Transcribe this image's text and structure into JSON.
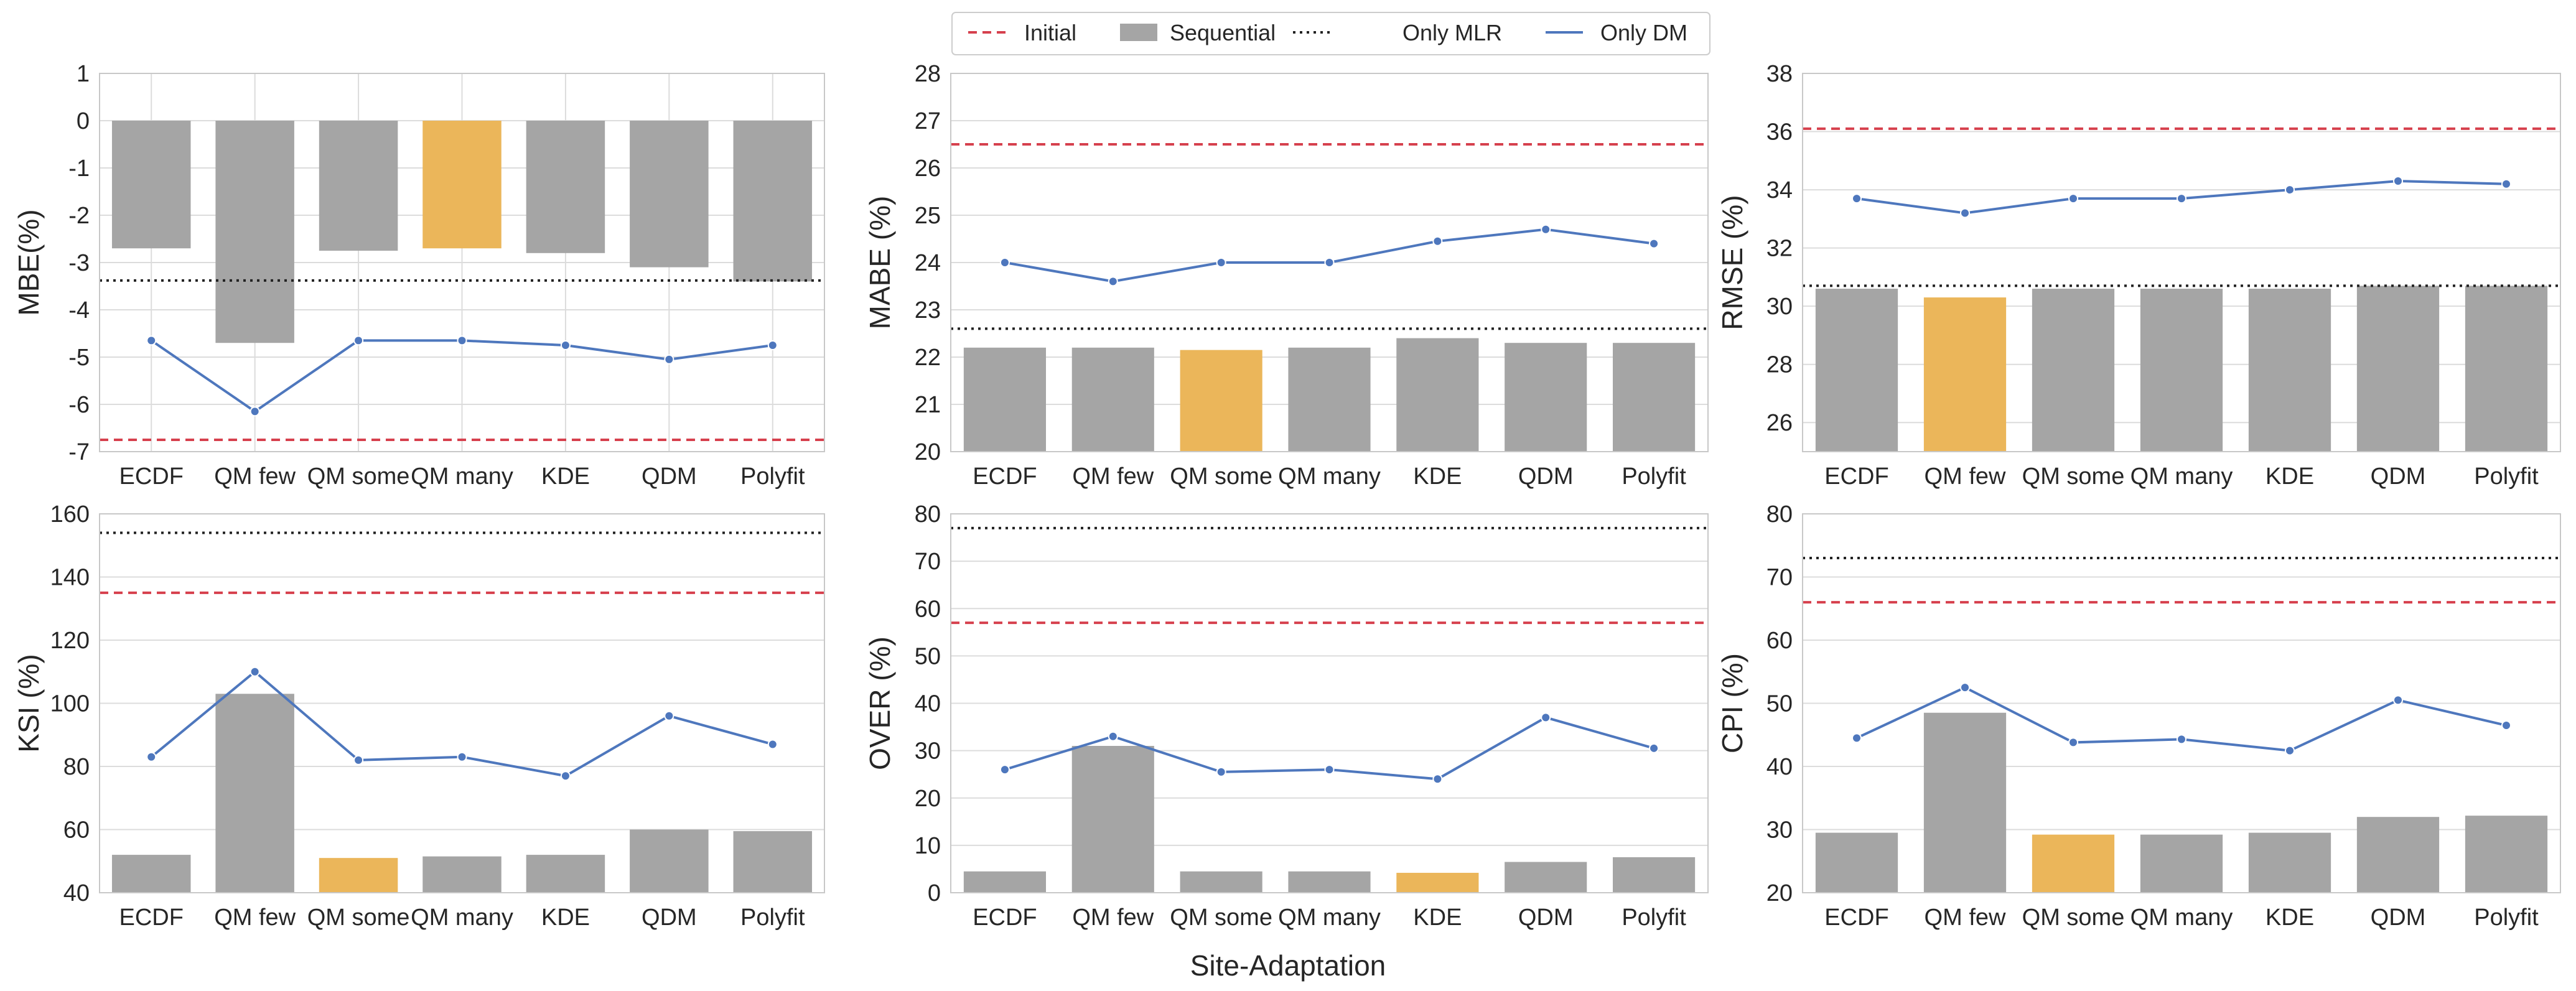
{
  "colors": {
    "bar": "#a5a5a5",
    "highlight": "#ebb65a",
    "initial": "#d6404d",
    "only_mlr": "#222222",
    "only_dm": "#4e77bd",
    "grid": "#dcdcdc",
    "frame": "#c8c8c8"
  },
  "legend": {
    "initial": "Initial",
    "sequential": "Sequential",
    "only_mlr": "Only MLR",
    "only_dm": "Only DM"
  },
  "xlabel": "Site-Adaptation",
  "chart_data": [
    {
      "type": "bar",
      "ylabel": "MBE(%)",
      "categories": [
        "ECDF",
        "QM few",
        "QM some",
        "QM many",
        "KDE",
        "QDM",
        "Polyfit"
      ],
      "ylim": [
        -7,
        1
      ],
      "yticks": [
        1,
        0,
        -1,
        -2,
        -3,
        -4,
        -5,
        -6,
        -7
      ],
      "xgrid": true,
      "series": [
        {
          "name": "Sequential",
          "kind": "bar",
          "values": [
            -2.7,
            -4.7,
            -2.75,
            -2.7,
            -2.8,
            -3.1,
            -3.4
          ],
          "highlight_index": 3
        },
        {
          "name": "Only DM",
          "kind": "line",
          "values": [
            -4.65,
            -6.15,
            -4.65,
            -4.65,
            -4.75,
            -5.05,
            -4.75
          ]
        },
        {
          "name": "Initial",
          "kind": "hline",
          "value": -6.75
        },
        {
          "name": "Only MLR",
          "kind": "hline",
          "value": -3.38
        }
      ]
    },
    {
      "type": "bar",
      "ylabel": "MABE (%)",
      "categories": [
        "ECDF",
        "QM few",
        "QM some",
        "QM many",
        "KDE",
        "QDM",
        "Polyfit"
      ],
      "ylim": [
        20,
        28
      ],
      "yticks": [
        28,
        27,
        26,
        25,
        24,
        23,
        22,
        21,
        20
      ],
      "xgrid": false,
      "series": [
        {
          "name": "Sequential",
          "kind": "bar",
          "values": [
            22.2,
            22.2,
            22.15,
            22.2,
            22.4,
            22.3,
            22.3
          ],
          "highlight_index": 2
        },
        {
          "name": "Only DM",
          "kind": "line",
          "values": [
            24.0,
            23.6,
            24.0,
            24.0,
            24.45,
            24.7,
            24.4
          ]
        },
        {
          "name": "Initial",
          "kind": "hline",
          "value": 26.5
        },
        {
          "name": "Only MLR",
          "kind": "hline",
          "value": 22.6
        }
      ]
    },
    {
      "type": "bar",
      "ylabel": "RMSE (%)",
      "categories": [
        "ECDF",
        "QM few",
        "QM some",
        "QM many",
        "KDE",
        "QDM",
        "Polyfit"
      ],
      "ylim": [
        25,
        38
      ],
      "yticks": [
        38,
        36,
        34,
        32,
        30,
        28,
        26
      ],
      "xgrid": false,
      "series": [
        {
          "name": "Sequential",
          "kind": "bar",
          "values": [
            30.6,
            30.3,
            30.6,
            30.6,
            30.6,
            30.7,
            30.7
          ],
          "highlight_index": 1
        },
        {
          "name": "Only DM",
          "kind": "line",
          "values": [
            33.7,
            33.2,
            33.7,
            33.7,
            34.0,
            34.3,
            34.2
          ]
        },
        {
          "name": "Initial",
          "kind": "hline",
          "value": 36.1
        },
        {
          "name": "Only MLR",
          "kind": "hline",
          "value": 30.7
        }
      ]
    },
    {
      "type": "bar",
      "ylabel": "KSI (%)",
      "categories": [
        "ECDF",
        "QM few",
        "QM some",
        "QM many",
        "KDE",
        "QDM",
        "Polyfit"
      ],
      "ylim": [
        40,
        160
      ],
      "yticks": [
        160,
        140,
        120,
        100,
        80,
        60,
        40
      ],
      "xgrid": false,
      "series": [
        {
          "name": "Sequential",
          "kind": "bar",
          "values": [
            52,
            103,
            51,
            51.5,
            52,
            60,
            59.5
          ],
          "highlight_index": 2
        },
        {
          "name": "Only DM",
          "kind": "line",
          "values": [
            83,
            110,
            82,
            83,
            77,
            96,
            87
          ]
        },
        {
          "name": "Initial",
          "kind": "hline",
          "value": 135
        },
        {
          "name": "Only MLR",
          "kind": "hline",
          "value": 154
        }
      ]
    },
    {
      "type": "bar",
      "ylabel": "OVER (%)",
      "categories": [
        "ECDF",
        "QM few",
        "QM some",
        "QM many",
        "KDE",
        "QDM",
        "Polyfit"
      ],
      "ylim": [
        0,
        80
      ],
      "yticks": [
        80,
        70,
        60,
        50,
        40,
        30,
        20,
        10,
        0
      ],
      "xgrid": false,
      "series": [
        {
          "name": "Sequential",
          "kind": "bar",
          "values": [
            4.5,
            31,
            4.5,
            4.5,
            4.2,
            6.5,
            7.5
          ],
          "highlight_index": 4
        },
        {
          "name": "Only DM",
          "kind": "line",
          "values": [
            26,
            33,
            25.5,
            26,
            24,
            37,
            30.5
          ]
        },
        {
          "name": "Initial",
          "kind": "hline",
          "value": 57
        },
        {
          "name": "Only MLR",
          "kind": "hline",
          "value": 77
        }
      ]
    },
    {
      "type": "bar",
      "ylabel": "CPI (%)",
      "categories": [
        "ECDF",
        "QM few",
        "QM some",
        "QM many",
        "KDE",
        "QDM",
        "Polyfit"
      ],
      "ylim": [
        20,
        80
      ],
      "yticks": [
        80,
        70,
        60,
        50,
        40,
        30,
        20
      ],
      "xgrid": false,
      "series": [
        {
          "name": "Sequential",
          "kind": "bar",
          "values": [
            29.5,
            48.5,
            29.2,
            29.2,
            29.5,
            32,
            32.2
          ],
          "highlight_index": 2
        },
        {
          "name": "Only DM",
          "kind": "line",
          "values": [
            44.5,
            52.5,
            43.8,
            44.3,
            42.5,
            50.5,
            46.5
          ]
        },
        {
          "name": "Initial",
          "kind": "hline",
          "value": 66
        },
        {
          "name": "Only MLR",
          "kind": "hline",
          "value": 73
        }
      ]
    }
  ]
}
